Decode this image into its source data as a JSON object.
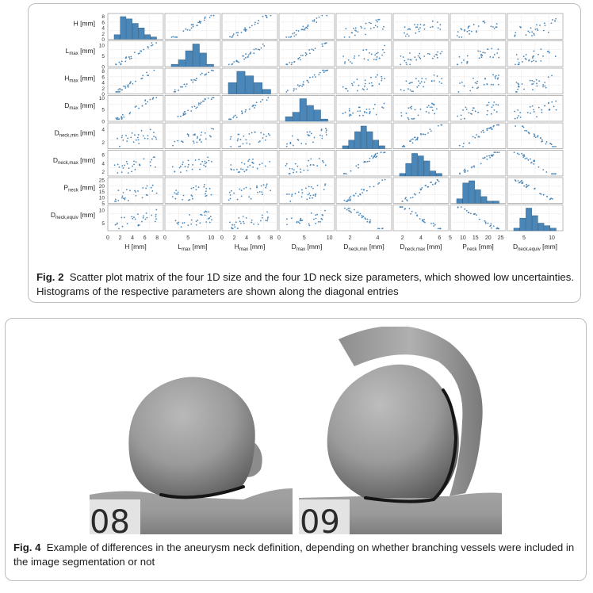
{
  "fig2": {
    "label": "Fig. 2",
    "caption": "Scatter plot matrix of the four 1D size and the four 1D neck size parameters, which showed low uncertainties. Histograms of the respective parameters are shown along the diagonal entries"
  },
  "fig4": {
    "label": "Fig. 4",
    "caption": "Example of differences in the aneurysm neck definition, depending on whether branching vessels were included in the image segmentation or not",
    "left_case": "08",
    "right_case": "09"
  },
  "chart_data": {
    "type": "scatter",
    "variables": [
      {
        "base": "H",
        "sub": "",
        "unit": "[mm]",
        "range": [
          0,
          9
        ],
        "ticks": [
          0,
          2,
          4,
          6,
          8
        ],
        "ticks_y": [
          0,
          2,
          4,
          6,
          8
        ]
      },
      {
        "base": "L",
        "sub": "max",
        "unit": "[mm]",
        "range": [
          0,
          12
        ],
        "ticks": [
          0,
          5,
          10
        ],
        "ticks_y": [
          0,
          5,
          10
        ]
      },
      {
        "base": "H",
        "sub": "max",
        "unit": "[mm]",
        "range": [
          0,
          9
        ],
        "ticks": [
          0,
          2,
          4,
          6,
          8
        ],
        "ticks_y": [
          0,
          2,
          4,
          6,
          8
        ]
      },
      {
        "base": "D",
        "sub": "max",
        "unit": "[mm]",
        "range": [
          0,
          11
        ],
        "ticks": [
          0,
          5,
          10
        ],
        "ticks_y": [
          0,
          5,
          10
        ]
      },
      {
        "base": "D",
        "sub": "neck,min",
        "unit": "[mm]",
        "range": [
          1,
          5
        ],
        "ticks": [
          2,
          4
        ],
        "ticks_y": [
          2,
          4
        ]
      },
      {
        "base": "D",
        "sub": "neck,max",
        "unit": "[mm]",
        "range": [
          1,
          7
        ],
        "ticks": [
          2,
          4,
          6
        ],
        "ticks_y": [
          2,
          4,
          6
        ]
      },
      {
        "base": "P",
        "sub": "neck",
        "unit": "[mm]",
        "range": [
          5,
          27
        ],
        "ticks": [
          5,
          10,
          15,
          20,
          25
        ],
        "ticks_y": [
          5,
          10,
          15,
          20,
          25
        ]
      },
      {
        "base": "D",
        "sub": "neck,equiv",
        "unit": "[mm]",
        "range": [
          2,
          12
        ],
        "ticks": [
          5,
          10
        ],
        "ticks_y": [
          5,
          10
        ]
      }
    ],
    "histograms": [
      [
        2,
        10,
        9,
        7,
        5,
        2,
        1
      ],
      [
        1,
        3,
        7,
        10,
        6,
        1
      ],
      [
        5,
        10,
        8,
        5,
        2
      ],
      [
        2,
        4,
        10,
        7,
        5,
        1
      ],
      [
        1,
        3,
        6,
        8,
        6,
        3,
        1
      ],
      [
        1,
        5,
        9,
        8,
        6,
        2,
        1
      ],
      [
        2,
        9,
        10,
        6,
        3,
        1,
        1
      ],
      [
        1,
        5,
        9,
        6,
        3,
        2,
        1
      ]
    ],
    "grid": true,
    "color": "#4a86b8"
  }
}
